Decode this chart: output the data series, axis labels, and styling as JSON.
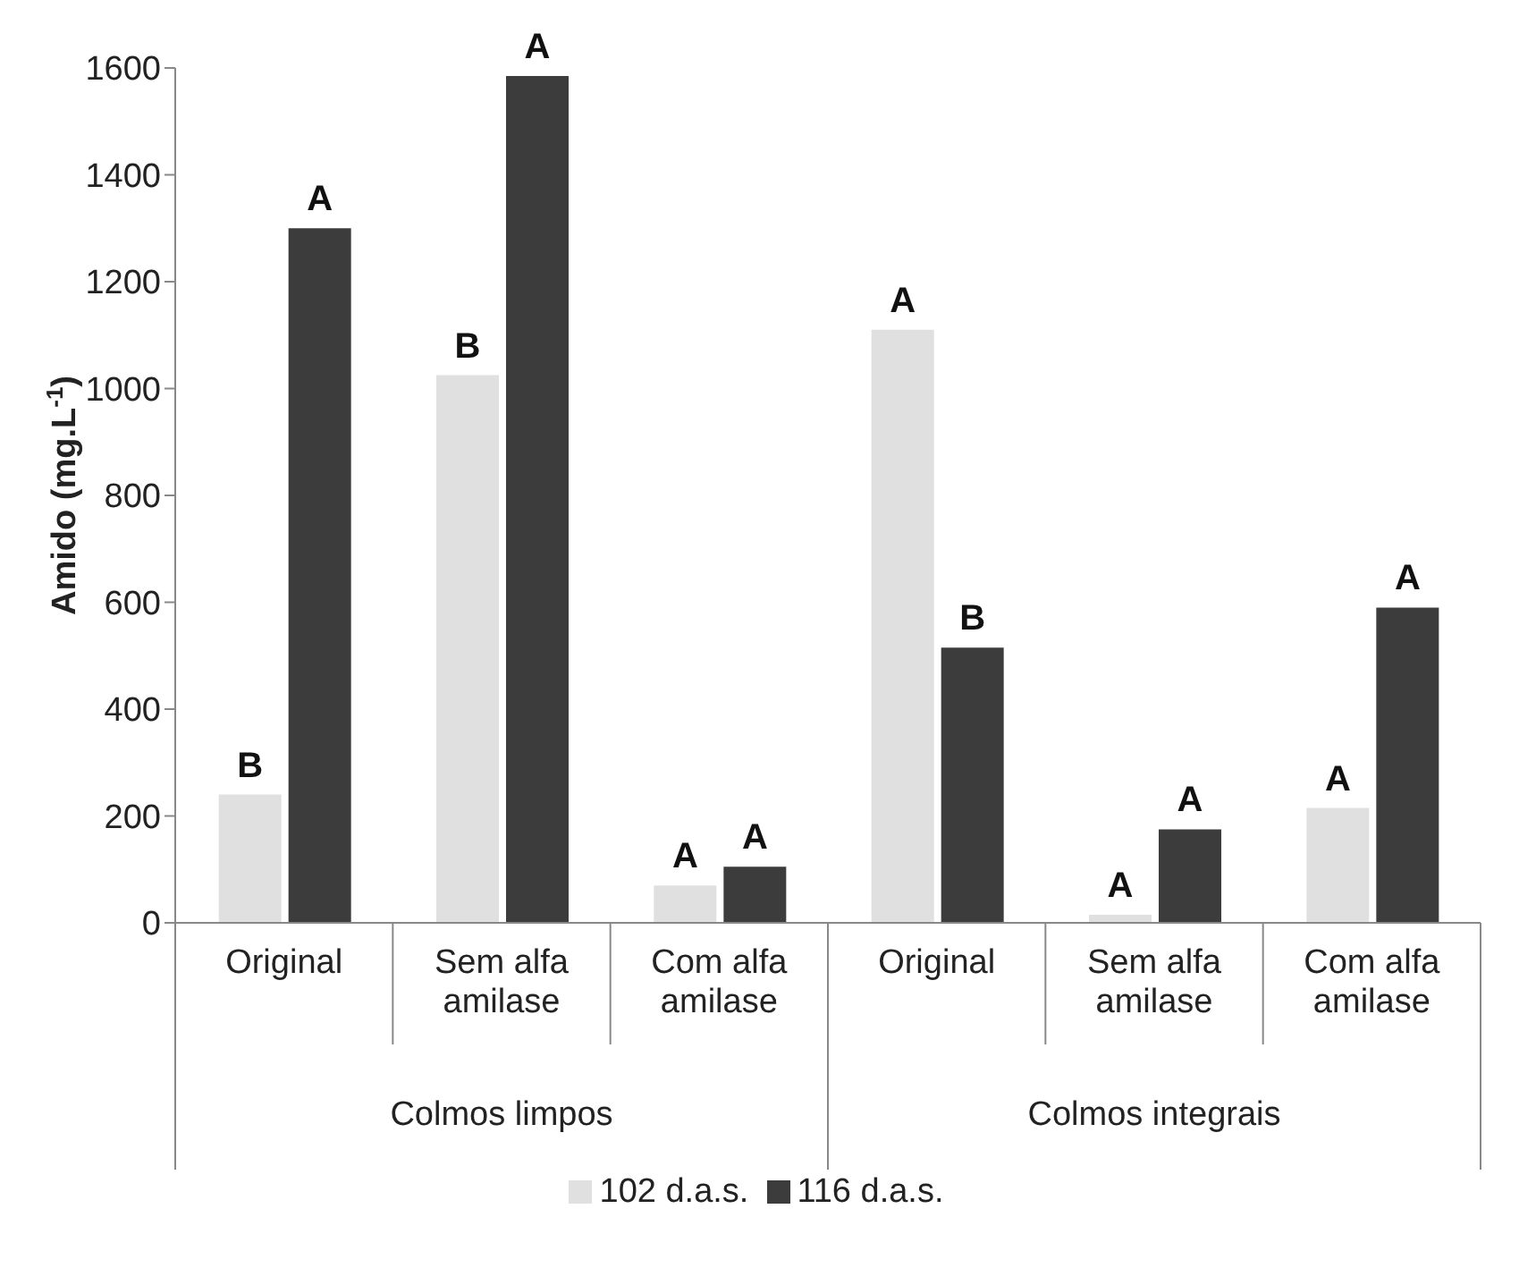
{
  "chart_data": {
    "type": "bar",
    "ylabel": "Amido (mg.L$^{-1}$)",
    "categories": [
      "Original",
      "Sem alfa amilase",
      "Com alfa amilase",
      "Original",
      "Sem alfa amilase",
      "Com alfa amilase"
    ],
    "series": [
      {
        "name": "102 d.a.s.",
        "color": "#e0e0e0",
        "values": [
          240,
          1025,
          70,
          1110,
          15,
          215
        ],
        "value_labels": [
          "B",
          "B",
          "A",
          "A",
          "A",
          "A"
        ]
      },
      {
        "name": "116 d.a.s.",
        "color": "#3c3c3c",
        "values": [
          1300,
          1585,
          105,
          515,
          175,
          590
        ],
        "value_labels": [
          "A",
          "A",
          "A",
          "B",
          "A",
          "A"
        ]
      }
    ],
    "ylim": [
      0,
      1600
    ],
    "yticks": [
      0,
      200,
      400,
      600,
      800,
      1000,
      1200,
      1400,
      1600
    ],
    "grid": false,
    "legend": "bottom",
    "annotations": [
      "Colmos limpos",
      "Colmos integrais"
    ]
  }
}
